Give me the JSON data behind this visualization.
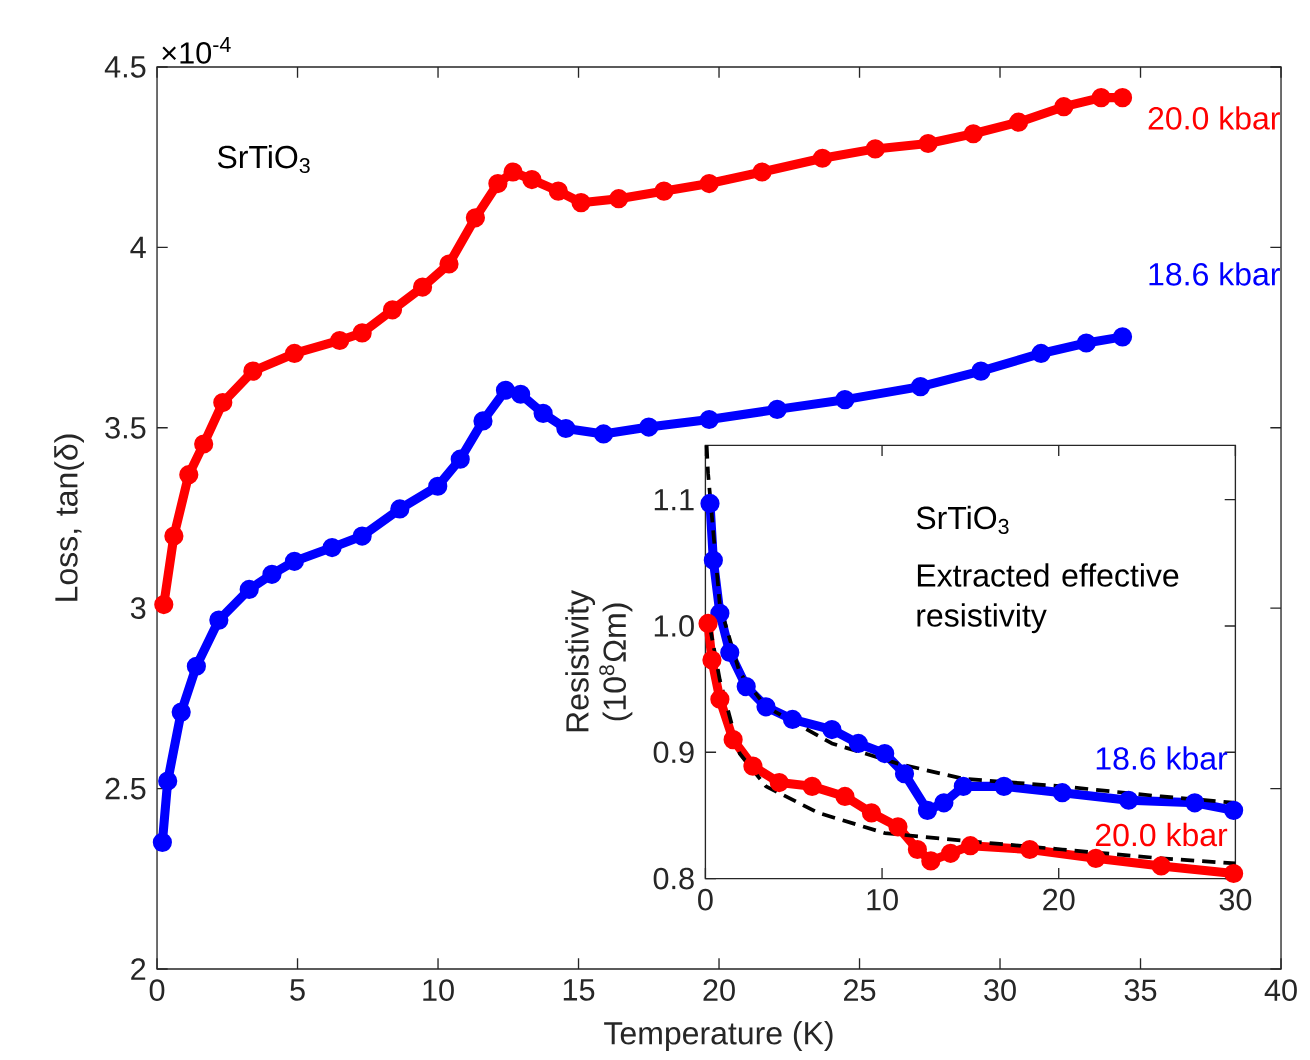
{
  "chart_data": [
    {
      "type": "line",
      "xlabel": "Temperature (K)",
      "ylabel": "Loss, tan(δ)",
      "xlim": [
        0,
        40
      ],
      "xticks": [
        0,
        5,
        10,
        15,
        20,
        25,
        30,
        35,
        40
      ],
      "ylim": [
        2,
        4.5
      ],
      "yticks": [
        2,
        2.5,
        3,
        3.5,
        4,
        4.5
      ],
      "annotations": [
        "×10$^{-4}$",
        "SrTiO$_{3}$"
      ],
      "marker": "circle",
      "series": [
        {
          "name": "20.0 kbar",
          "color": "#ff0000",
          "x": [
            0.24,
            0.6,
            1.13,
            1.66,
            2.34,
            3.41,
            4.89,
            6.5,
            7.3,
            8.38,
            9.45,
            10.39,
            11.33,
            12.13,
            12.67,
            13.34,
            14.28,
            15.09,
            16.43,
            18.04,
            19.65,
            21.53,
            23.68,
            25.56,
            27.44,
            29.05,
            30.66,
            32.27,
            33.6,
            34.36
          ],
          "values": [
            3.01,
            3.2,
            3.37,
            3.455,
            3.57,
            3.657,
            3.706,
            3.742,
            3.763,
            3.827,
            3.89,
            3.954,
            4.082,
            4.177,
            4.209,
            4.188,
            4.156,
            4.124,
            4.135,
            4.156,
            4.177,
            4.209,
            4.247,
            4.273,
            4.288,
            4.315,
            4.347,
            4.39,
            4.415,
            4.415
          ]
        },
        {
          "name": "18.6 kbar",
          "color": "#0000ff",
          "x": [
            0.19,
            0.38,
            0.86,
            1.4,
            2.2,
            3.28,
            4.09,
            4.89,
            6.23,
            7.3,
            8.64,
            9.99,
            10.79,
            11.6,
            12.4,
            12.94,
            13.74,
            14.55,
            15.89,
            17.5,
            19.65,
            22.07,
            24.48,
            27.17,
            29.32,
            31.46,
            33.07,
            34.36
          ],
          "values": [
            2.351,
            2.521,
            2.712,
            2.839,
            2.967,
            3.052,
            3.094,
            3.13,
            3.168,
            3.2,
            3.275,
            3.338,
            3.413,
            3.519,
            3.604,
            3.593,
            3.54,
            3.498,
            3.483,
            3.502,
            3.523,
            3.551,
            3.578,
            3.614,
            3.657,
            3.706,
            3.735,
            3.752
          ]
        }
      ]
    },
    {
      "type": "line",
      "ylabel": "Resistivity (10$^{8}$Ωm)",
      "xlim": [
        0,
        30
      ],
      "xticks": [
        0,
        10,
        20,
        30
      ],
      "ylim": [
        0.8,
        1.143
      ],
      "yticks": [
        0.8,
        0.9,
        {
          "value": 1,
          "label": "1.0"
        },
        1.1
      ],
      "annotations": [
        "SrTiO$_{3}$",
        "Extracted effective resistivity"
      ],
      "marker": "circle",
      "series": [
        {
          "name": "18.6 kbar",
          "color": "#0000ff",
          "x": [
            0.26,
            0.45,
            0.82,
            1.38,
            2.31,
            3.43,
            4.93,
            7.16,
            8.66,
            10.15,
            11.27,
            12.57,
            13.5,
            14.6,
            16.9,
            20.2,
            23.96,
            27.7,
            29.9
          ],
          "values": [
            1.097,
            1.052,
            1.01,
            0.979,
            0.952,
            0.936,
            0.926,
            0.918,
            0.907,
            0.899,
            0.883,
            0.854,
            0.86,
            0.873,
            0.873,
            0.868,
            0.862,
            0.86,
            0.854
          ]
        },
        {
          "name": "20.0 kbar",
          "color": "#ff0000",
          "x": [
            0.15,
            0.37,
            0.82,
            1.57,
            2.69,
            4.18,
            6.04,
            7.9,
            9.4,
            10.9,
            12.0,
            12.76,
            13.88,
            15.0,
            18.36,
            22.1,
            25.8,
            29.9
          ],
          "values": [
            1.002,
            0.973,
            0.942,
            0.91,
            0.889,
            0.876,
            0.873,
            0.865,
            0.852,
            0.841,
            0.823,
            0.814,
            0.82,
            0.826,
            0.823,
            0.816,
            0.81,
            0.804
          ]
        },
        {
          "color": "#000000",
          "line_style": "dashed",
          "marker": "none",
          "x": [
            0.07,
            0.15,
            0.82,
            1.94,
            3.43,
            7.16,
            10.9,
            14.6,
            20.2,
            25.8,
            30
          ],
          "values": [
            1.143,
            1.121,
            1.016,
            0.963,
            0.936,
            0.907,
            0.891,
            0.879,
            0.873,
            0.865,
            0.86
          ]
        },
        {
          "color": "#000000",
          "line_style": "dashed",
          "marker": "none",
          "x": [
            0.26,
            0.82,
            1.94,
            3.43,
            6.4,
            10.15,
            14.6,
            20.2,
            25.8,
            30
          ],
          "values": [
            0.999,
            0.957,
            0.899,
            0.873,
            0.852,
            0.836,
            0.83,
            0.823,
            0.816,
            0.812
          ]
        }
      ]
    }
  ]
}
